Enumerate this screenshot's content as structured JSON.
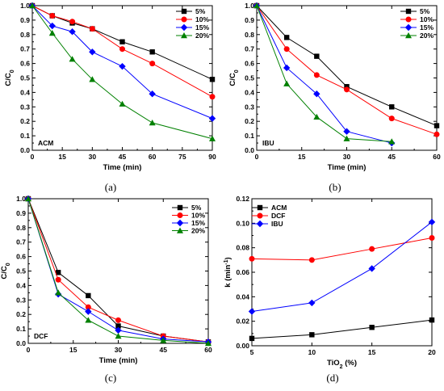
{
  "chart_data": [
    {
      "panel": "(a)",
      "type": "line",
      "xlabel": "Time (min)",
      "ylabel": "C/C0",
      "xlim": [
        0,
        90
      ],
      "ylim": [
        0,
        1.0
      ],
      "xticks": [
        0,
        15,
        30,
        45,
        60,
        75,
        90
      ],
      "yticks": [
        0,
        0.1,
        0.2,
        0.3,
        0.4,
        0.5,
        0.6,
        0.7,
        0.8,
        0.9,
        1.0
      ],
      "annotation": "ACM",
      "legend_position": "top-right",
      "series": [
        {
          "name": "5%",
          "color": "#000000",
          "marker": "square",
          "x": [
            0,
            10,
            20,
            30,
            45,
            60,
            90
          ],
          "y": [
            1.0,
            0.93,
            0.88,
            0.84,
            0.75,
            0.68,
            0.49
          ]
        },
        {
          "name": "10%",
          "color": "#ff0000",
          "marker": "circle",
          "x": [
            0,
            10,
            20,
            30,
            45,
            60,
            90
          ],
          "y": [
            1.0,
            0.93,
            0.89,
            0.84,
            0.7,
            0.6,
            0.37
          ]
        },
        {
          "name": "15%",
          "color": "#0000ff",
          "marker": "diamond",
          "x": [
            0,
            10,
            20,
            30,
            45,
            60,
            90
          ],
          "y": [
            1.0,
            0.86,
            0.82,
            0.68,
            0.58,
            0.39,
            0.22
          ]
        },
        {
          "name": "20%",
          "color": "#008000",
          "marker": "triangle",
          "x": [
            0,
            10,
            20,
            30,
            45,
            60,
            90
          ],
          "y": [
            1.0,
            0.81,
            0.63,
            0.49,
            0.32,
            0.19,
            0.08
          ]
        }
      ]
    },
    {
      "panel": "(b)",
      "type": "line",
      "xlabel": "Time (min)",
      "ylabel": "C/C0",
      "xlim": [
        0,
        60
      ],
      "ylim": [
        0,
        1.0
      ],
      "xticks": [
        0,
        15,
        30,
        45,
        60
      ],
      "yticks": [
        0,
        0.1,
        0.2,
        0.3,
        0.4,
        0.5,
        0.6,
        0.7,
        0.8,
        0.9,
        1.0
      ],
      "annotation": "IBU",
      "legend_position": "top-right",
      "series": [
        {
          "name": "5%",
          "color": "#000000",
          "marker": "square",
          "x": [
            0,
            10,
            20,
            30,
            45,
            60
          ],
          "y": [
            1.0,
            0.78,
            0.65,
            0.44,
            0.3,
            0.17
          ]
        },
        {
          "name": "10%",
          "color": "#ff0000",
          "marker": "circle",
          "x": [
            0,
            10,
            20,
            30,
            45,
            60
          ],
          "y": [
            1.0,
            0.7,
            0.52,
            0.42,
            0.22,
            0.11
          ]
        },
        {
          "name": "15%",
          "color": "#0000ff",
          "marker": "diamond",
          "x": [
            0,
            10,
            20,
            30,
            45
          ],
          "y": [
            1.0,
            0.57,
            0.39,
            0.13,
            0.05
          ]
        },
        {
          "name": "20%",
          "color": "#008000",
          "marker": "triangle",
          "x": [
            0,
            10,
            20,
            30,
            45
          ],
          "y": [
            1.0,
            0.46,
            0.23,
            0.08,
            0.06
          ]
        }
      ]
    },
    {
      "panel": "(c)",
      "type": "line",
      "xlabel": "Time (min)",
      "ylabel": "C/C0",
      "xlim": [
        0,
        60
      ],
      "ylim": [
        0,
        1.0
      ],
      "xticks": [
        0,
        15,
        30,
        45,
        60
      ],
      "yticks": [
        0,
        0.1,
        0.2,
        0.3,
        0.4,
        0.5,
        0.6,
        0.7,
        0.8,
        0.9,
        1.0
      ],
      "annotation": "DCF",
      "legend_position": "top-right",
      "series": [
        {
          "name": "5%",
          "color": "#000000",
          "marker": "square",
          "x": [
            0,
            10,
            20,
            30,
            45,
            60
          ],
          "y": [
            1.0,
            0.49,
            0.33,
            0.12,
            0.05,
            0.01
          ]
        },
        {
          "name": "10%",
          "color": "#ff0000",
          "marker": "circle",
          "x": [
            0,
            10,
            20,
            30,
            45,
            60
          ],
          "y": [
            1.0,
            0.44,
            0.25,
            0.16,
            0.05,
            0.01
          ]
        },
        {
          "name": "15%",
          "color": "#0000ff",
          "marker": "diamond",
          "x": [
            0,
            10,
            20,
            30,
            45,
            60
          ],
          "y": [
            1.0,
            0.34,
            0.22,
            0.09,
            0.03,
            0.01
          ]
        },
        {
          "name": "20%",
          "color": "#008000",
          "marker": "triangle",
          "x": [
            0,
            10,
            20,
            30,
            45,
            60
          ],
          "y": [
            1.0,
            0.35,
            0.16,
            0.05,
            0.02,
            0.0
          ]
        }
      ]
    },
    {
      "panel": "(d)",
      "type": "line",
      "xlabel": "TiO2 (%)",
      "ylabel": "k (min-1)",
      "xlim": [
        5,
        20
      ],
      "ylim": [
        0,
        0.12
      ],
      "xticks": [
        5,
        10,
        15,
        20
      ],
      "yticks": [
        0,
        0.02,
        0.04,
        0.06,
        0.08,
        0.1,
        0.12
      ],
      "legend_position": "top-left",
      "series": [
        {
          "name": "ACM",
          "color": "#000000",
          "marker": "square",
          "x": [
            5,
            10,
            15,
            20
          ],
          "y": [
            0.006,
            0.009,
            0.015,
            0.021
          ]
        },
        {
          "name": "DCF",
          "color": "#ff0000",
          "marker": "circle",
          "x": [
            5,
            10,
            15,
            20
          ],
          "y": [
            0.071,
            0.07,
            0.079,
            0.088
          ]
        },
        {
          "name": "IBU",
          "color": "#0000ff",
          "marker": "diamond",
          "x": [
            5,
            10,
            15,
            20
          ],
          "y": [
            0.028,
            0.035,
            0.063,
            0.101
          ]
        }
      ]
    }
  ]
}
